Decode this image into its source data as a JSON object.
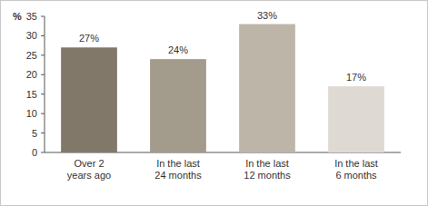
{
  "chart_data": {
    "type": "bar",
    "y_label": "%",
    "categories": [
      "Over 2\nyears ago",
      "In the last\n24 months",
      "In the last\n12 months",
      "In the last\n6 months"
    ],
    "values": [
      27,
      24,
      33,
      17
    ],
    "value_labels": [
      "27%",
      "24%",
      "33%",
      "17%"
    ],
    "colors": [
      "#82786a",
      "#a39b8c",
      "#beb5a9",
      "#dedad3"
    ],
    "ylim": [
      0,
      35
    ],
    "yticks": [
      0,
      5,
      10,
      15,
      20,
      25,
      30,
      35
    ],
    "grid": false,
    "data_labels": true
  }
}
